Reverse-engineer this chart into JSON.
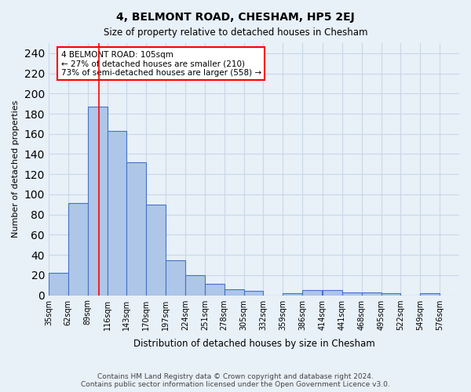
{
  "title": "4, BELMONT ROAD, CHESHAM, HP5 2EJ",
  "subtitle": "Size of property relative to detached houses in Chesham",
  "xlabel": "Distribution of detached houses by size in Chesham",
  "ylabel": "Number of detached properties",
  "bar_values": [
    22,
    91,
    187,
    163,
    132,
    90,
    35,
    20,
    11,
    6,
    4,
    0,
    2,
    5,
    5,
    3,
    3,
    2,
    0,
    2
  ],
  "bin_labels": [
    "35sqm",
    "62sqm",
    "89sqm",
    "116sqm",
    "143sqm",
    "170sqm",
    "197sqm",
    "224sqm",
    "251sqm",
    "278sqm",
    "305sqm",
    "332sqm",
    "359sqm",
    "386sqm",
    "414sqm",
    "441sqm",
    "468sqm",
    "495sqm",
    "522sqm",
    "549sqm",
    "576sqm"
  ],
  "bar_color": "#aec6e8",
  "bar_edge_color": "#4472c4",
  "grid_color": "#c8d8e8",
  "background_color": "#e8f0f8",
  "annotation_box_text": "4 BELMONT ROAD: 105sqm\n← 27% of detached houses are smaller (210)\n73% of semi-detached houses are larger (558) →",
  "annotation_box_color": "white",
  "annotation_box_edge_color": "red",
  "vline_x": 105,
  "vline_color": "red",
  "ylim": [
    0,
    250
  ],
  "yticks": [
    0,
    20,
    40,
    60,
    80,
    100,
    120,
    140,
    160,
    180,
    200,
    220,
    240
  ],
  "footer_text": "Contains HM Land Registry data © Crown copyright and database right 2024.\nContains public sector information licensed under the Open Government Licence v3.0.",
  "bin_edges": [
    35,
    62,
    89,
    116,
    143,
    170,
    197,
    224,
    251,
    278,
    305,
    332,
    359,
    386,
    414,
    441,
    468,
    495,
    522,
    549,
    576
  ]
}
